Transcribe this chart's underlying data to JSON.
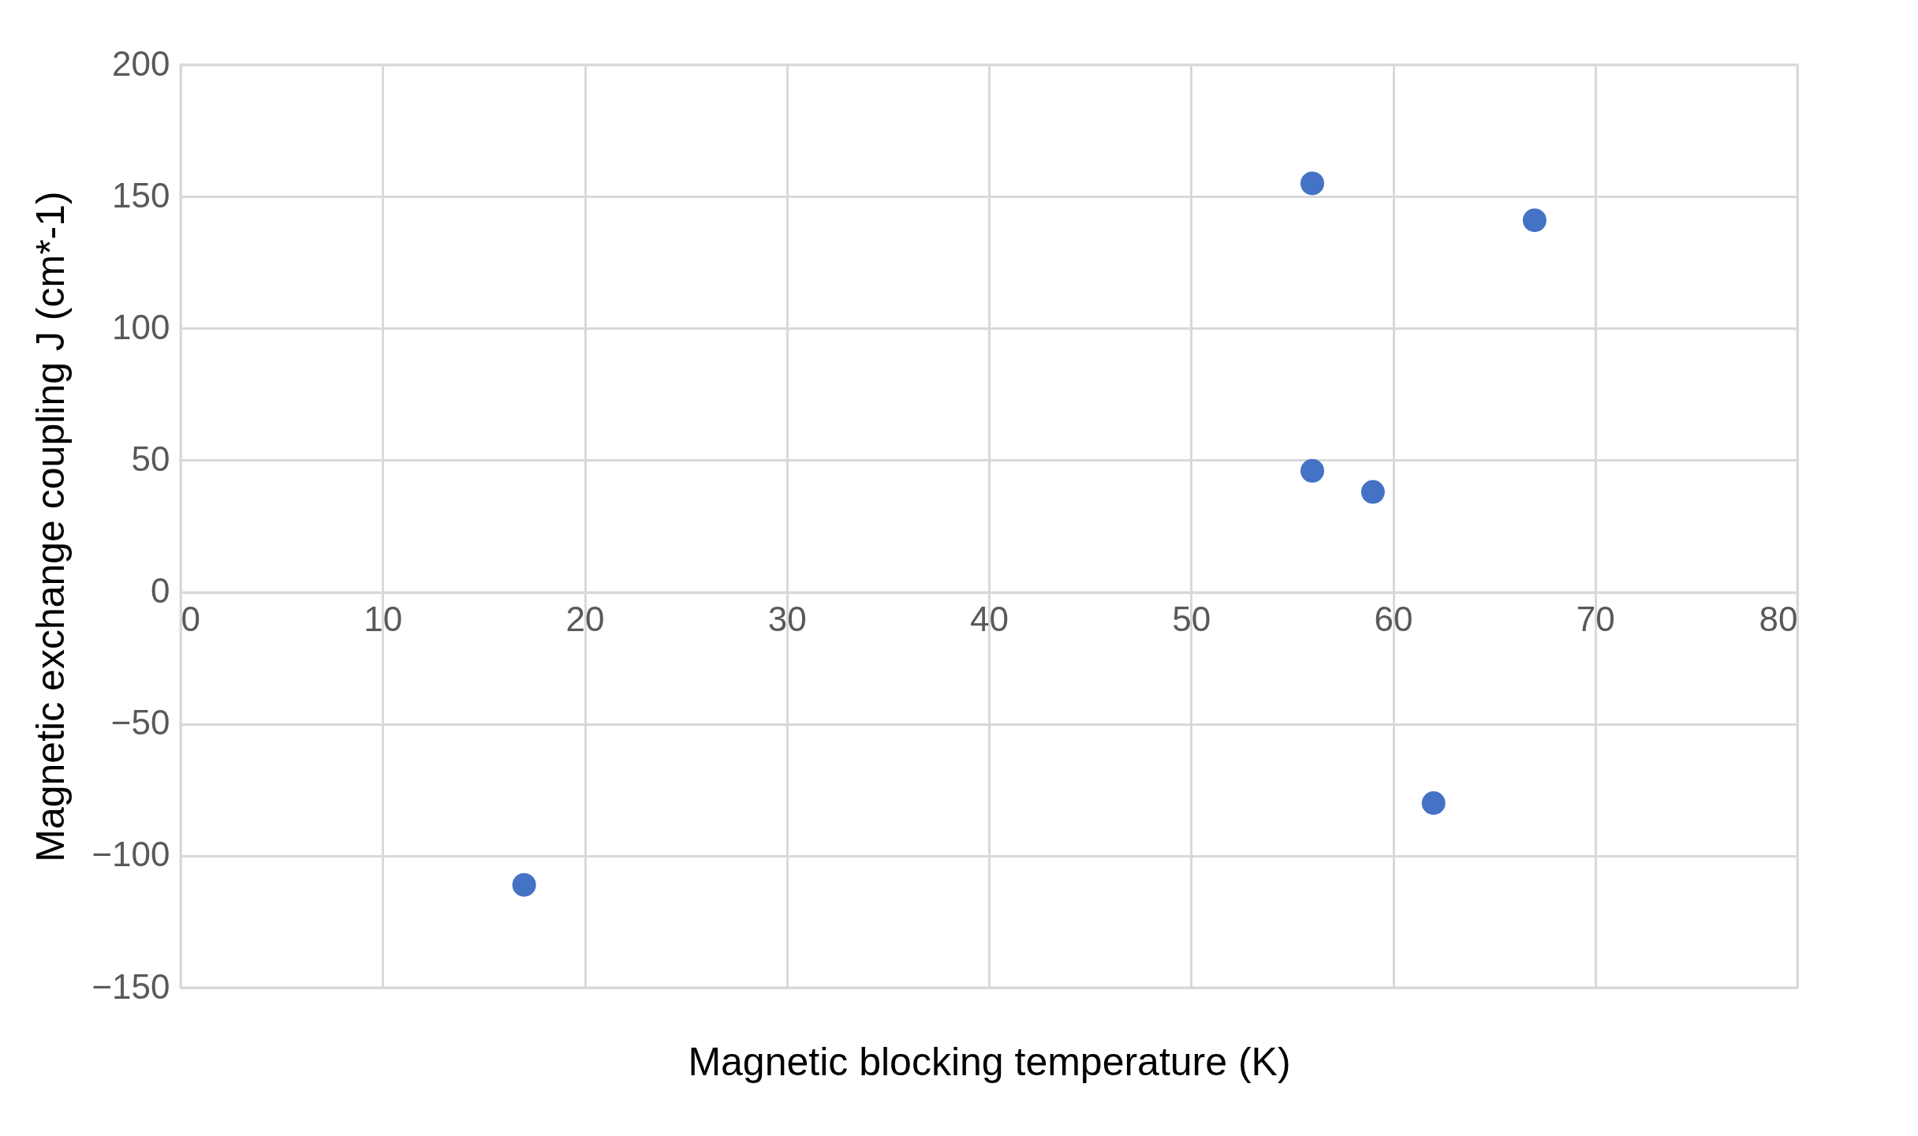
{
  "chart_data": {
    "type": "scatter",
    "xlabel": "Magnetic blocking temperature (K)",
    "ylabel": "Magnetic exchange coupling J (cm*-1)",
    "x": [
      17,
      56,
      56,
      59,
      62,
      67
    ],
    "series": [
      {
        "color": "#4472c4",
        "values": [
          -111,
          155,
          46,
          38,
          -80,
          141
        ]
      }
    ],
    "xlim": [
      0,
      80
    ],
    "xticks": [
      0,
      10,
      20,
      30,
      40,
      50,
      60,
      70,
      80
    ],
    "ylim": [
      -150,
      200
    ],
    "yticks": [
      -150,
      -100,
      -50,
      0,
      50,
      100,
      150,
      200
    ],
    "grid": true,
    "marker": "circle"
  }
}
